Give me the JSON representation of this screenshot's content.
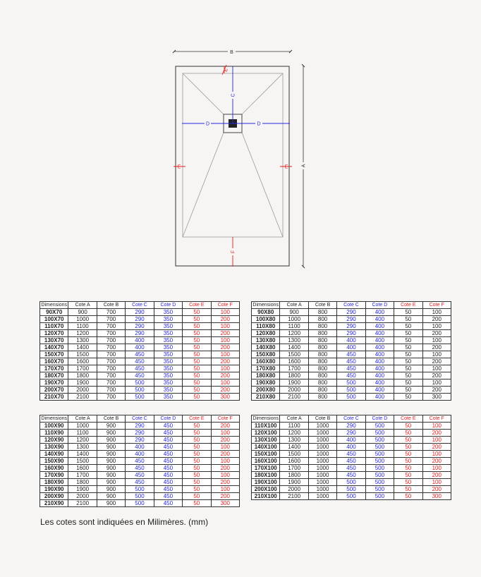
{
  "drawing": {
    "labels": {
      "a": "A",
      "b": "B",
      "c": "C",
      "d": "D",
      "e": "E",
      "f": "F"
    },
    "colors": {
      "cote_cd": "#2626e0",
      "cote_ef": "#e41b1b",
      "outline": "#333333",
      "slope": "#9a9a9a"
    }
  },
  "tables": [
    {
      "headers": [
        "Dimensions",
        "Cote A",
        "Cote B",
        "Cote C",
        "Cote D",
        "Cote E",
        "Cote F"
      ],
      "ef_values_red": true,
      "rows": [
        [
          "90X70",
          "900",
          "700",
          "290",
          "350",
          "50",
          "100"
        ],
        [
          "100X70",
          "1000",
          "700",
          "290",
          "350",
          "50",
          "200"
        ],
        [
          "110X70",
          "1100",
          "700",
          "290",
          "350",
          "50",
          "100"
        ],
        [
          "120X70",
          "1200",
          "700",
          "290",
          "350",
          "50",
          "200"
        ],
        [
          "130X70",
          "1300",
          "700",
          "400",
          "350",
          "50",
          "100"
        ],
        [
          "140X70",
          "1400",
          "700",
          "400",
          "350",
          "50",
          "200"
        ],
        [
          "150X70",
          "1500",
          "700",
          "450",
          "350",
          "50",
          "100"
        ],
        [
          "160X70",
          "1600",
          "700",
          "450",
          "350",
          "50",
          "200"
        ],
        [
          "170X70",
          "1700",
          "700",
          "450",
          "350",
          "50",
          "100"
        ],
        [
          "180X70",
          "1800",
          "700",
          "450",
          "350",
          "50",
          "200"
        ],
        [
          "190X70",
          "1900",
          "700",
          "500",
          "350",
          "50",
          "100"
        ],
        [
          "200X70",
          "2000",
          "700",
          "500",
          "350",
          "50",
          "200"
        ],
        [
          "210X70",
          "2100",
          "700",
          "500",
          "350",
          "50",
          "300"
        ]
      ]
    },
    {
      "headers": [
        "Dimensions",
        "Cote A",
        "Cote B",
        "Cote C",
        "Cote D",
        "Cote E",
        "Cote F"
      ],
      "ef_values_red": false,
      "rows": [
        [
          "90X80",
          "900",
          "800",
          "290",
          "400",
          "50",
          "100"
        ],
        [
          "100X80",
          "1000",
          "800",
          "290",
          "400",
          "50",
          "200"
        ],
        [
          "110X80",
          "1100",
          "800",
          "290",
          "400",
          "50",
          "100"
        ],
        [
          "120X80",
          "1200",
          "800",
          "290",
          "400",
          "50",
          "200"
        ],
        [
          "130X80",
          "1300",
          "800",
          "400",
          "400",
          "50",
          "100"
        ],
        [
          "140X80",
          "1400",
          "800",
          "400",
          "400",
          "50",
          "200"
        ],
        [
          "150X80",
          "1500",
          "800",
          "450",
          "400",
          "50",
          "100"
        ],
        [
          "160X80",
          "1600",
          "800",
          "450",
          "400",
          "50",
          "200"
        ],
        [
          "170X80",
          "1700",
          "800",
          "450",
          "400",
          "50",
          "100"
        ],
        [
          "180X80",
          "1800",
          "800",
          "450",
          "400",
          "50",
          "200"
        ],
        [
          "190X80",
          "1900",
          "800",
          "500",
          "400",
          "50",
          "100"
        ],
        [
          "200X80",
          "2000",
          "800",
          "500",
          "400",
          "50",
          "200"
        ],
        [
          "210X80",
          "2100",
          "800",
          "500",
          "400",
          "50",
          "300"
        ]
      ]
    },
    {
      "headers": [
        "Dimensions",
        "Cote A",
        "Cote B",
        "Cote C",
        "Cote D",
        "Cote E",
        "Cote F"
      ],
      "ef_values_red": true,
      "rows": [
        [
          "100X90",
          "1000",
          "900",
          "290",
          "450",
          "50",
          "200"
        ],
        [
          "110X90",
          "1100",
          "900",
          "290",
          "450",
          "50",
          "100"
        ],
        [
          "120X90",
          "1200",
          "900",
          "290",
          "450",
          "50",
          "200"
        ],
        [
          "130X90",
          "1300",
          "900",
          "400",
          "450",
          "50",
          "100"
        ],
        [
          "140X90",
          "1400",
          "900",
          "400",
          "450",
          "50",
          "200"
        ],
        [
          "150X90",
          "1500",
          "900",
          "450",
          "450",
          "50",
          "100"
        ],
        [
          "160X90",
          "1600",
          "900",
          "450",
          "450",
          "50",
          "200"
        ],
        [
          "170X90",
          "1700",
          "900",
          "450",
          "450",
          "50",
          "100"
        ],
        [
          "180X90",
          "1800",
          "900",
          "450",
          "450",
          "50",
          "200"
        ],
        [
          "190X90",
          "1900",
          "900",
          "500",
          "450",
          "50",
          "100"
        ],
        [
          "200X90",
          "2000",
          "900",
          "500",
          "450",
          "50",
          "200"
        ],
        [
          "210X90",
          "2100",
          "900",
          "500",
          "450",
          "50",
          "300"
        ]
      ]
    },
    {
      "headers": [
        "Dimensions",
        "Cote A",
        "Cote B",
        "Cote C",
        "Cote D",
        "Cote E",
        "Cote F"
      ],
      "ef_values_red": true,
      "rows": [
        [
          "110X100",
          "1100",
          "1000",
          "290",
          "500",
          "50",
          "100"
        ],
        [
          "120X100",
          "1200",
          "1000",
          "290",
          "500",
          "50",
          "200"
        ],
        [
          "130X100",
          "1300",
          "1000",
          "400",
          "500",
          "50",
          "100"
        ],
        [
          "140X100",
          "1400",
          "1000",
          "400",
          "500",
          "50",
          "200"
        ],
        [
          "150X100",
          "1500",
          "1000",
          "450",
          "500",
          "50",
          "100"
        ],
        [
          "160X100",
          "1600",
          "1000",
          "450",
          "500",
          "50",
          "200"
        ],
        [
          "170X100",
          "1700",
          "1000",
          "450",
          "500",
          "50",
          "100"
        ],
        [
          "180X100",
          "1800",
          "1000",
          "450",
          "500",
          "50",
          "200"
        ],
        [
          "190X100",
          "1900",
          "1000",
          "500",
          "500",
          "50",
          "100"
        ],
        [
          "200X100",
          "2000",
          "1000",
          "500",
          "500",
          "50",
          "200"
        ],
        [
          "210X100",
          "2100",
          "1000",
          "500",
          "500",
          "50",
          "300"
        ]
      ]
    }
  ],
  "note": "Les cotes sont indiquées en Milimères. (mm)"
}
